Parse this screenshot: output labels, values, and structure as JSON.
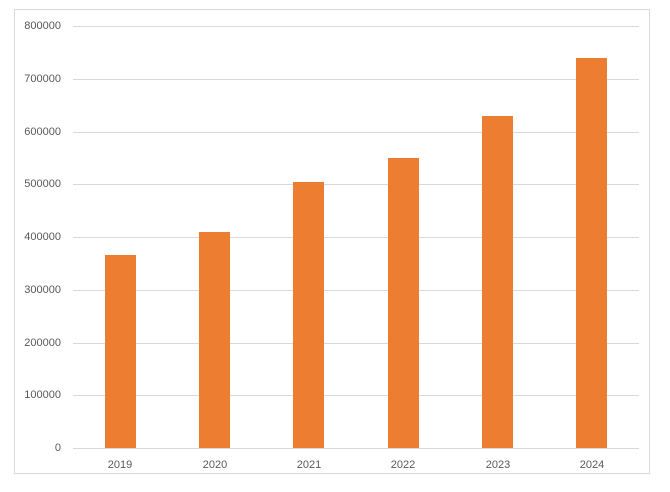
{
  "chart_data": {
    "type": "bar",
    "title": "",
    "xlabel": "",
    "ylabel": "",
    "categories": [
      "2019",
      "2020",
      "2021",
      "2022",
      "2023",
      "2024"
    ],
    "values": [
      365000,
      410000,
      505000,
      550000,
      630000,
      740000
    ],
    "series_name": "",
    "ylim": [
      0,
      800000
    ],
    "ytick_interval": 100000,
    "ytick_labels": [
      "0",
      "100000",
      "200000",
      "300000",
      "400000",
      "500000",
      "600000",
      "700000",
      "800000"
    ],
    "grid": true,
    "legend_position": "none",
    "bar_color": "#ED7D31",
    "gridline_color": "#D9D9D9",
    "frame_border_color": "#D9D9D9",
    "tick_label_color": "#595959",
    "background_color": "#FFFFFF"
  }
}
